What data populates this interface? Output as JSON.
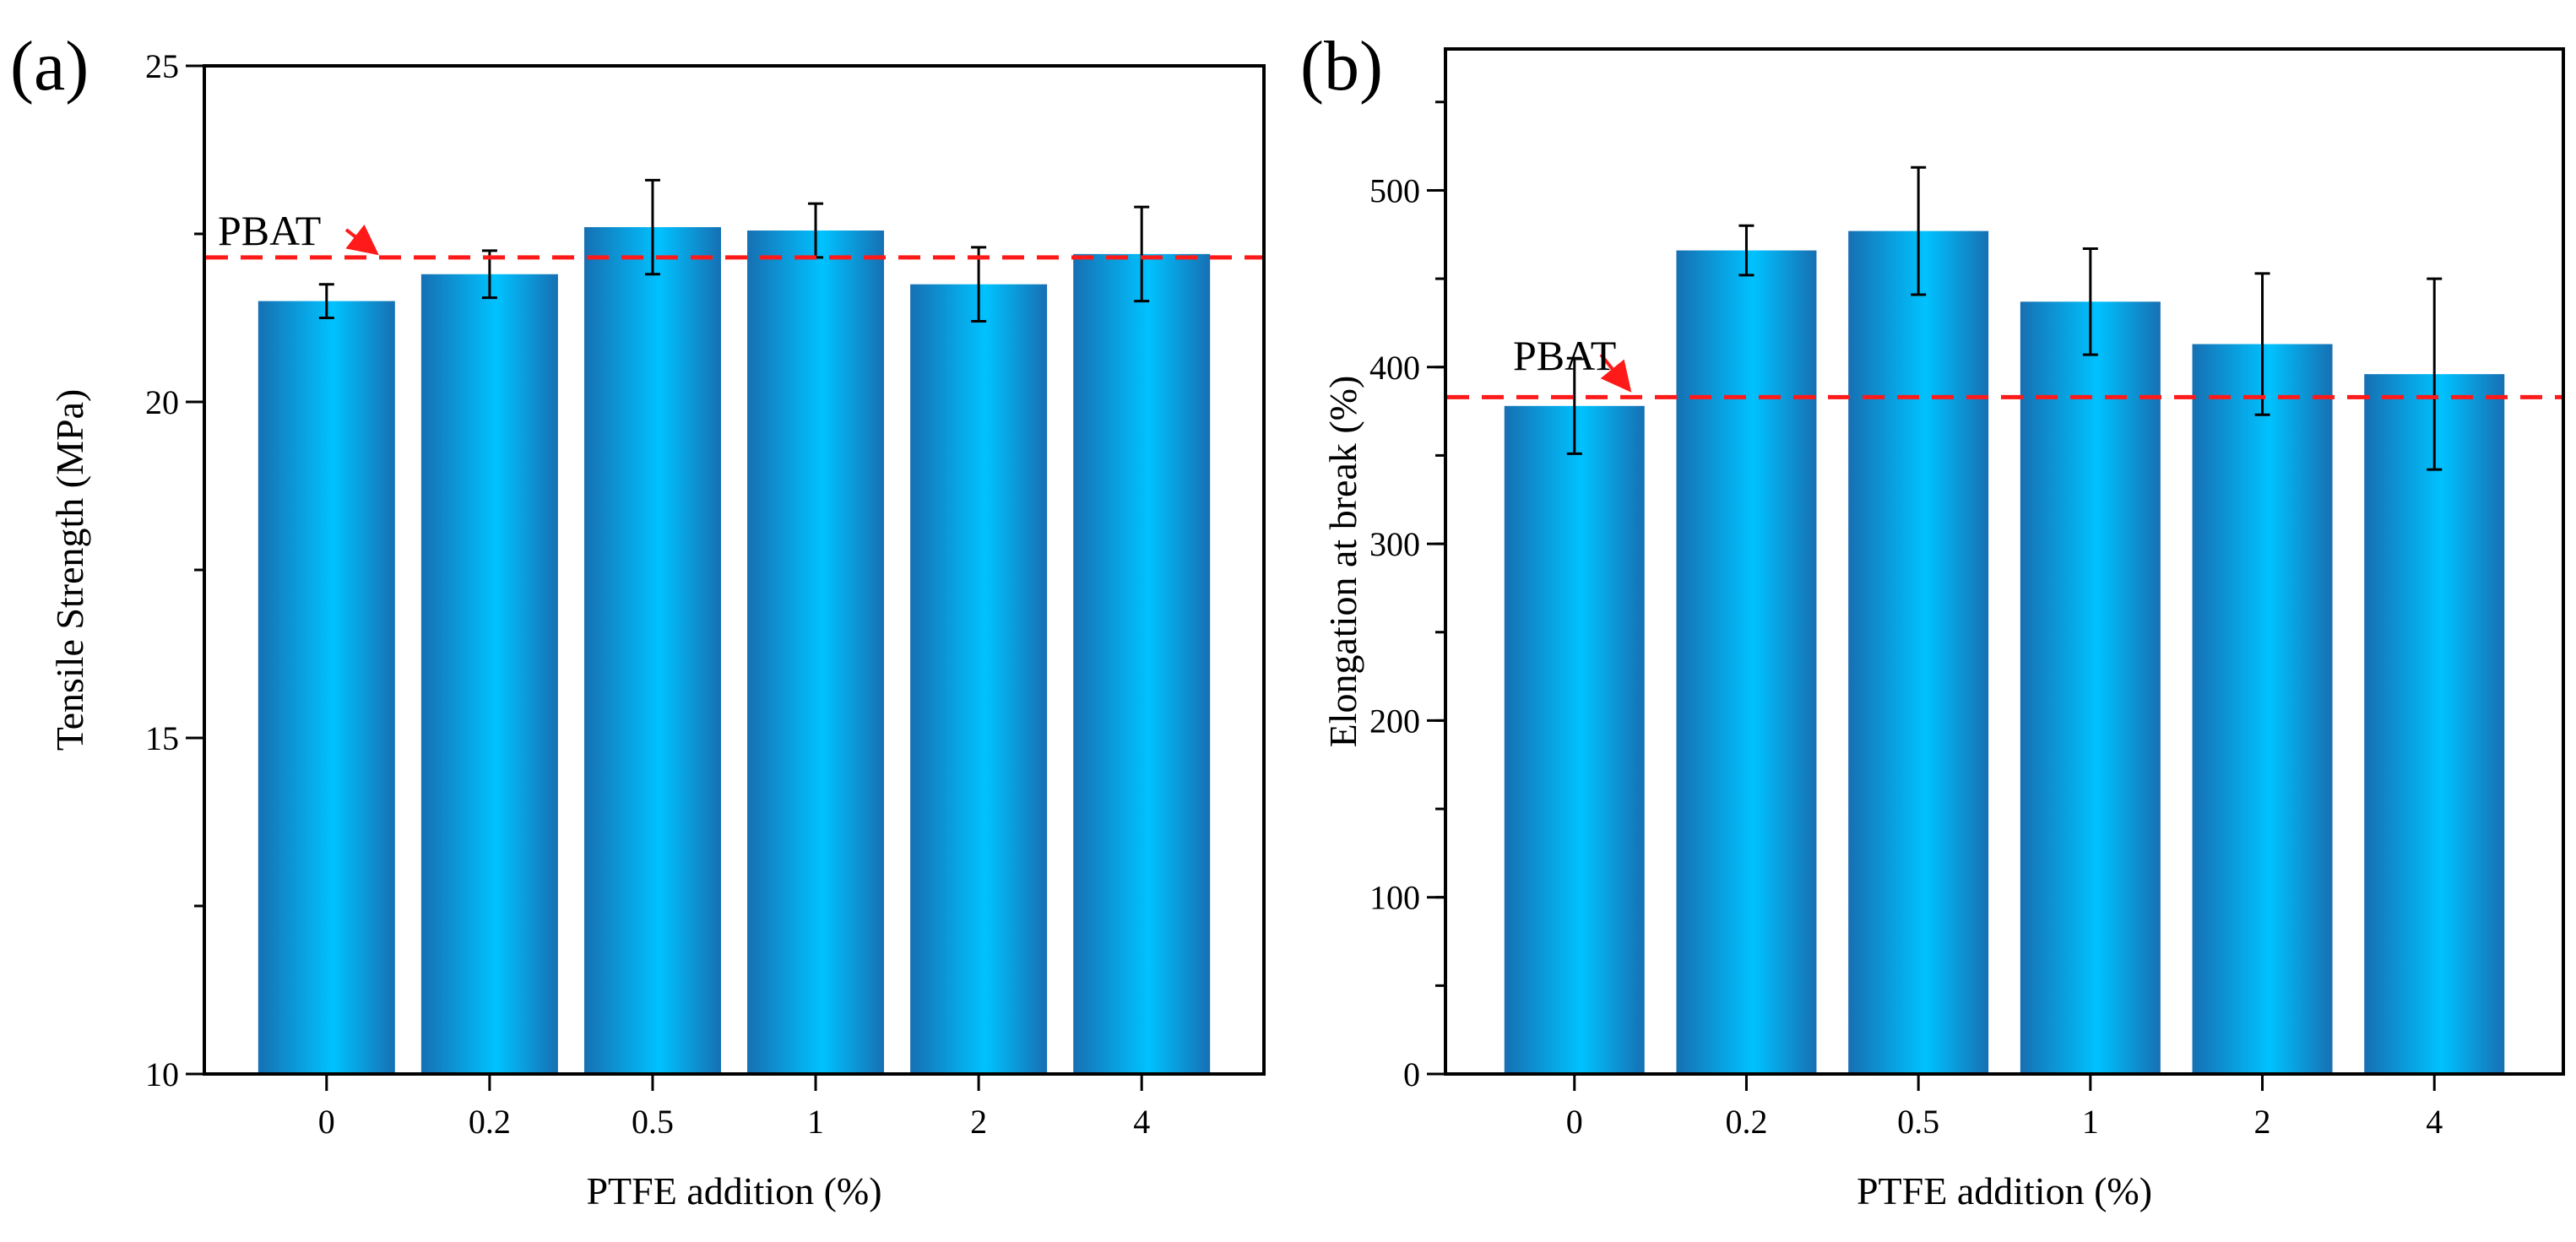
{
  "colors": {
    "bar_edge": "#1670b3",
    "bar_mid": "#4fc3f4",
    "bar_light": "#00c2ff",
    "reference_line": "#ff1a1a",
    "axis": "#000000"
  },
  "chart_data": [
    {
      "type": "bar",
      "panel_label": "(a)",
      "title": "",
      "xlabel": "PTFE addition (%)",
      "ylabel": "Tensile Strength (MPa)",
      "categories": [
        "0",
        "0.2",
        "0.5",
        "1",
        "2",
        "4"
      ],
      "values": [
        21.5,
        21.9,
        22.6,
        22.55,
        21.75,
        22.2
      ],
      "errors": [
        0.25,
        0.35,
        0.7,
        0.4,
        0.55,
        0.7
      ],
      "ylim": [
        10,
        25
      ],
      "yticks": [
        10,
        15,
        20,
        25
      ],
      "ytick_labels": [
        "10",
        "15",
        "20",
        "25"
      ],
      "minor_ytick_step": 2.5,
      "reference_line": {
        "label": "PBAT",
        "value": 22.15
      },
      "grid": false
    },
    {
      "type": "bar",
      "panel_label": "(b)",
      "title": "",
      "xlabel": "PTFE addition (%)",
      "ylabel": "Elongation at break (%)",
      "categories": [
        "0",
        "0.2",
        "0.5",
        "1",
        "2",
        "4"
      ],
      "values": [
        378,
        466,
        477,
        437,
        413,
        396
      ],
      "errors": [
        27,
        14,
        36,
        30,
        40,
        54
      ],
      "ylim": [
        0,
        580
      ],
      "yticks": [
        0,
        100,
        200,
        300,
        400,
        500
      ],
      "ytick_labels": [
        "0",
        "100",
        "200",
        "300",
        "400",
        "500"
      ],
      "minor_ytick_step": 50,
      "reference_line": {
        "label": "PBAT",
        "value": 383
      },
      "grid": false
    }
  ]
}
